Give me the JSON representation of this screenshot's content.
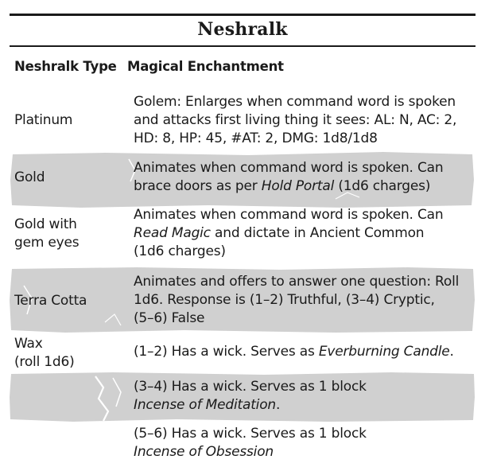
{
  "table": {
    "title": "Neshralk",
    "headers": {
      "type": "Neshralk Type",
      "enchantment": "Magical Enchantment"
    },
    "rows": [
      {
        "type": [
          "Platinum"
        ],
        "effect": [
          [
            {
              "t": "Golem: Enlarges when command word is spoken"
            }
          ],
          [
            {
              "t": "and attacks first living thing it sees: AL: N, AC: 2,"
            }
          ],
          [
            {
              "t": "HD: 8, HP: 45, #AT: 2, DMG: 1d8/1d8"
            }
          ]
        ]
      },
      {
        "type": [
          "Gold"
        ],
        "effect": [
          [
            {
              "t": "Animates when command word is spoken. Can"
            }
          ],
          [
            {
              "t": "brace doors as per "
            },
            {
              "t": "Hold Portal",
              "i": true
            },
            {
              "t": " (1d6 charges)"
            }
          ]
        ]
      },
      {
        "type": [
          "Gold with",
          "gem eyes"
        ],
        "effect": [
          [
            {
              "t": "Animates when command word is spoken. Can"
            }
          ],
          [
            {
              "t": "Read Magic",
              "i": true
            },
            {
              "t": " and dictate in Ancient Common"
            }
          ],
          [
            {
              "t": "(1d6 charges)"
            }
          ]
        ]
      },
      {
        "type": [
          "Terra Cotta"
        ],
        "effect": [
          [
            {
              "t": "Animates and offers to answer one question: Roll"
            }
          ],
          [
            {
              "t": "1d6. Response is (1–2) Truthful, (3–4) Cryptic,"
            }
          ],
          [
            {
              "t": "(5–6) False"
            }
          ]
        ]
      },
      {
        "type": [
          "Wax",
          "(roll 1d6)"
        ],
        "effect": [
          [
            {
              "t": "(1–2) Has a wick. Serves as "
            },
            {
              "t": "Everburning Candle",
              "i": true
            },
            {
              "t": "."
            }
          ]
        ]
      },
      {
        "type": [],
        "effect": [
          [
            {
              "t": "(3–4) Has a wick. Serves as 1 block"
            }
          ],
          [
            {
              "t": "Incense of Meditation",
              "i": true
            },
            {
              "t": "."
            }
          ]
        ]
      },
      {
        "type": [],
        "effect": [
          [
            {
              "t": "(5–6) Has a wick. Serves as 1 block"
            }
          ],
          [
            {
              "t": "Incense of Obsession",
              "i": true
            }
          ]
        ]
      }
    ]
  }
}
